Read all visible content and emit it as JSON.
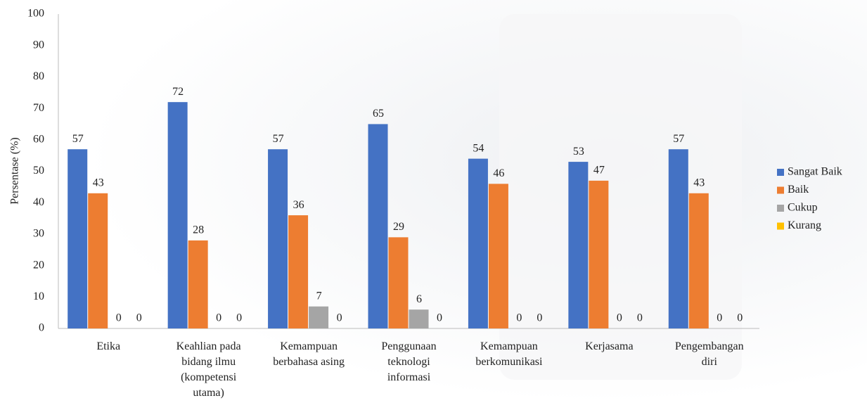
{
  "chart_data": {
    "type": "bar",
    "y_label": "Persentase (%)",
    "categories": [
      "Etika",
      "Keahlian pada bidang ilmu (kompetensi utama)",
      "Kemampuan berbahasa asing",
      "Penggunaan teknologi informasi",
      "Kemampuan berkomunikasi",
      "Kerjasama",
      "Pengembangan diri"
    ],
    "series": [
      {
        "name": "Sangat Baik",
        "color": "#4472c4",
        "values": [
          57,
          72,
          57,
          65,
          54,
          53,
          57
        ]
      },
      {
        "name": "Baik",
        "color": "#ed7d31",
        "values": [
          43,
          28,
          36,
          29,
          46,
          47,
          43
        ]
      },
      {
        "name": "Cukup",
        "color": "#a5a5a5",
        "values": [
          0,
          0,
          7,
          6,
          0,
          0,
          0
        ]
      },
      {
        "name": "Kurang",
        "color": "#ffc000",
        "values": [
          0,
          0,
          0,
          0,
          0,
          0,
          0
        ]
      }
    ],
    "ylim": [
      0,
      100
    ],
    "yticks": [
      0,
      10,
      20,
      30,
      40,
      50,
      60,
      70,
      80,
      90,
      100
    ],
    "grid": false,
    "legend": "right",
    "data_labels": true
  }
}
